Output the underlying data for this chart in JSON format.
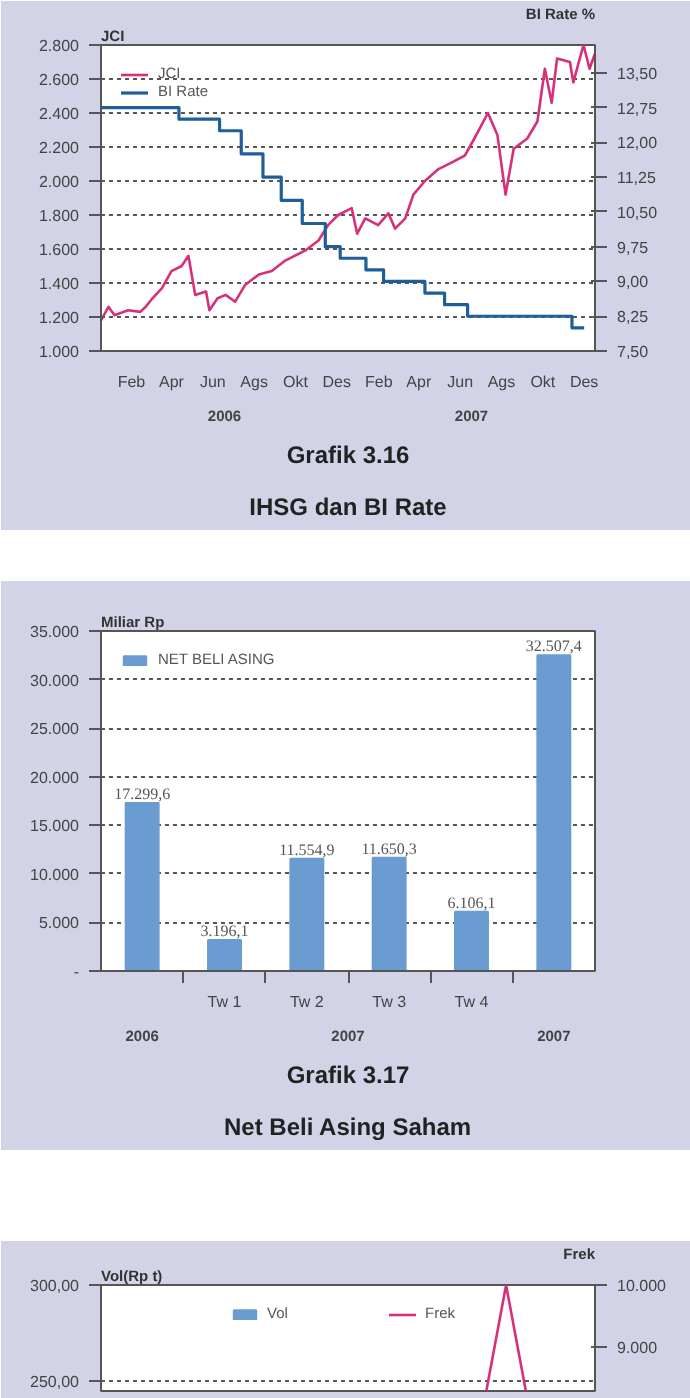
{
  "chart_data": [
    {
      "type": "line",
      "title": "Grafik 3.16",
      "subtitle": "IHSG dan BI Rate",
      "ylabel": "JCI",
      "y2label": "BI Rate %",
      "legend": "top left",
      "grid": "y",
      "annotations": [
        "2006",
        "2007"
      ],
      "xlim": [
        "2006-01-01",
        "2007-12-31"
      ],
      "xticks": [
        {
          "value": "2006-02-15",
          "label": "Feb"
        },
        {
          "value": "2006-04-15",
          "label": "Apr"
        },
        {
          "value": "2006-06-15",
          "label": "Jun"
        },
        {
          "value": "2006-08-15",
          "label": "Ags"
        },
        {
          "value": "2006-10-15",
          "label": "Okt"
        },
        {
          "value": "2006-12-15",
          "label": "Des"
        },
        {
          "value": "2007-02-15",
          "label": "Feb"
        },
        {
          "value": "2007-04-15",
          "label": "Apr"
        },
        {
          "value": "2007-06-15",
          "label": "Jun"
        },
        {
          "value": "2007-08-15",
          "label": "Ags"
        },
        {
          "value": "2007-10-15",
          "label": "Okt"
        },
        {
          "value": "2007-12-15",
          "label": "Des"
        }
      ],
      "ylim": [
        1000,
        2800
      ],
      "yticks": [
        {
          "value": 1000,
          "label": "1.000"
        },
        {
          "value": 1200,
          "label": "1.200"
        },
        {
          "value": 1400,
          "label": "1.400"
        },
        {
          "value": 1600,
          "label": "1.600"
        },
        {
          "value": 1800,
          "label": "1.800"
        },
        {
          "value": 2000,
          "label": "2.000"
        },
        {
          "value": 2200,
          "label": "2.200"
        },
        {
          "value": 2400,
          "label": "2.400"
        },
        {
          "value": 2600,
          "label": "2.600"
        },
        {
          "value": 2800,
          "label": "2.800"
        }
      ],
      "y2lim": [
        7.5,
        14.1
      ],
      "y2ticks": [
        {
          "value": 7.5,
          "label": "7,50"
        },
        {
          "value": 8.25,
          "label": "8,25"
        },
        {
          "value": 9.0,
          "label": "9,00"
        },
        {
          "value": 9.75,
          "label": "9,75"
        },
        {
          "value": 10.5,
          "label": "10,50"
        },
        {
          "value": 11.25,
          "label": "11,25"
        },
        {
          "value": 12.0,
          "label": "12,00"
        },
        {
          "value": 12.75,
          "label": "12,75"
        },
        {
          "value": 13.5,
          "label": "13,50"
        }
      ],
      "series": [
        {
          "name": "JCI",
          "color": "#d6307a",
          "x": [
            "2006-01-01",
            "2006-01-12",
            "2006-01-21",
            "2006-02-10",
            "2006-02-28",
            "2006-03-08",
            "2006-03-18",
            "2006-04-01",
            "2006-04-15",
            "2006-04-30",
            "2006-05-10",
            "2006-05-20",
            "2006-06-05",
            "2006-06-10",
            "2006-06-22",
            "2006-07-04",
            "2006-07-18",
            "2006-08-02",
            "2006-08-22",
            "2006-09-10",
            "2006-09-29",
            "2006-10-29",
            "2006-11-18",
            "2006-12-02",
            "2006-12-17",
            "2007-01-06",
            "2007-01-14",
            "2007-01-26",
            "2007-02-14",
            "2007-03-01",
            "2007-03-11",
            "2007-03-26",
            "2007-04-07",
            "2007-04-24",
            "2007-05-14",
            "2007-06-03",
            "2007-06-22",
            "2007-07-06",
            "2007-07-26",
            "2007-08-09",
            "2007-08-21",
            "2007-09-02",
            "2007-09-22",
            "2007-10-07",
            "2007-10-18",
            "2007-10-28",
            "2007-11-05",
            "2007-11-24",
            "2007-11-29",
            "2007-12-14",
            "2007-12-23",
            "2007-12-31"
          ],
          "values": [
            1180,
            1260,
            1210,
            1240,
            1230,
            1260,
            1310,
            1370,
            1470,
            1500,
            1560,
            1330,
            1350,
            1240,
            1310,
            1330,
            1290,
            1390,
            1450,
            1470,
            1530,
            1590,
            1650,
            1740,
            1800,
            1840,
            1690,
            1780,
            1740,
            1810,
            1720,
            1780,
            1920,
            2000,
            2070,
            2110,
            2150,
            2250,
            2400,
            2270,
            1920,
            2190,
            2250,
            2350,
            2660,
            2460,
            2720,
            2700,
            2580,
            2800,
            2660,
            2750
          ]
        },
        {
          "name": "BI Rate",
          "color": "#1f5f99",
          "type": "step",
          "axis": "y2",
          "x": [
            "2006-01-01",
            "2006-04-26",
            "2006-06-25",
            "2006-07-27",
            "2006-08-28",
            "2006-09-24",
            "2006-10-25",
            "2006-11-28",
            "2006-12-20",
            "2007-01-27",
            "2007-02-22",
            "2007-04-24",
            "2007-05-23",
            "2007-06-26",
            "2007-11-27",
            "2007-12-15"
          ],
          "values": [
            12.75,
            12.5,
            12.25,
            11.75,
            11.25,
            10.75,
            10.25,
            9.75,
            9.5,
            9.25,
            9.0,
            8.75,
            8.5,
            8.25,
            8.0,
            8.0
          ]
        }
      ]
    },
    {
      "type": "bar",
      "title": "Grafik 3.17",
      "subtitle": "Net Beli Asing Saham",
      "ylabel": "Miliar Rp",
      "legend": "top left",
      "grid": "y",
      "annotations": [
        "2006",
        "2007",
        "2007"
      ],
      "categories": [
        null,
        "Tw 1",
        "Tw 2",
        "Tw 3",
        "Tw 4",
        null
      ],
      "ylim": [
        0,
        35000
      ],
      "yticks": [
        {
          "value": 0,
          "label": "-"
        },
        {
          "value": 5000,
          "label": "5.000"
        },
        {
          "value": 10000,
          "label": "10.000"
        },
        {
          "value": 15000,
          "label": "15.000"
        },
        {
          "value": 20000,
          "label": "20.000"
        },
        {
          "value": 25000,
          "label": "25.000"
        },
        {
          "value": 30000,
          "label": "30.000"
        },
        {
          "value": 35000,
          "label": "35.000"
        }
      ],
      "series": [
        {
          "name": "NET BELI ASING",
          "color": "#6a9bd1",
          "values": [
            17299.6,
            3196.1,
            11554.9,
            11650.3,
            6106.1,
            32507.4
          ],
          "value_labels": [
            "17.299,6",
            "3.196,1",
            "11.554,9",
            "11.650,3",
            "6.106,1",
            "32.507,4"
          ]
        }
      ]
    },
    {
      "type": "line",
      "ylabel": "Vol(Rp t)",
      "y2label": "Frek",
      "legend": "top",
      "grid": "y",
      "categories": [
        null,
        null,
        null,
        null,
        null,
        null,
        null,
        null,
        null,
        null,
        null,
        null,
        null,
        null,
        null,
        null,
        null,
        null,
        null,
        null,
        null,
        null,
        null,
        null,
        null
      ],
      "ylim": [
        245,
        300
      ],
      "yticks": [
        {
          "value": 250,
          "label": "250,00"
        },
        {
          "value": 300,
          "label": "300,00"
        }
      ],
      "y2lim": [
        8300,
        10000
      ],
      "y2ticks": [
        {
          "value": 9000,
          "label": "9.000"
        },
        {
          "value": 10000,
          "label": "10.000"
        }
      ],
      "series": [
        {
          "name": "Vol",
          "color": "#6a9bd1",
          "type": "bar",
          "values": [
            null,
            null,
            null,
            null,
            null,
            null,
            null,
            null,
            null,
            null,
            null,
            null,
            null,
            null,
            null,
            null,
            null,
            null,
            null,
            null,
            null,
            null,
            null,
            null,
            null
          ]
        },
        {
          "name": "Frek",
          "color": "#d6307a",
          "axis": "y2",
          "values": [
            null,
            null,
            null,
            null,
            null,
            null,
            null,
            null,
            null,
            null,
            null,
            null,
            null,
            null,
            null,
            null,
            null,
            null,
            null,
            8300,
            10000,
            8300,
            null,
            null,
            null
          ]
        }
      ]
    }
  ]
}
